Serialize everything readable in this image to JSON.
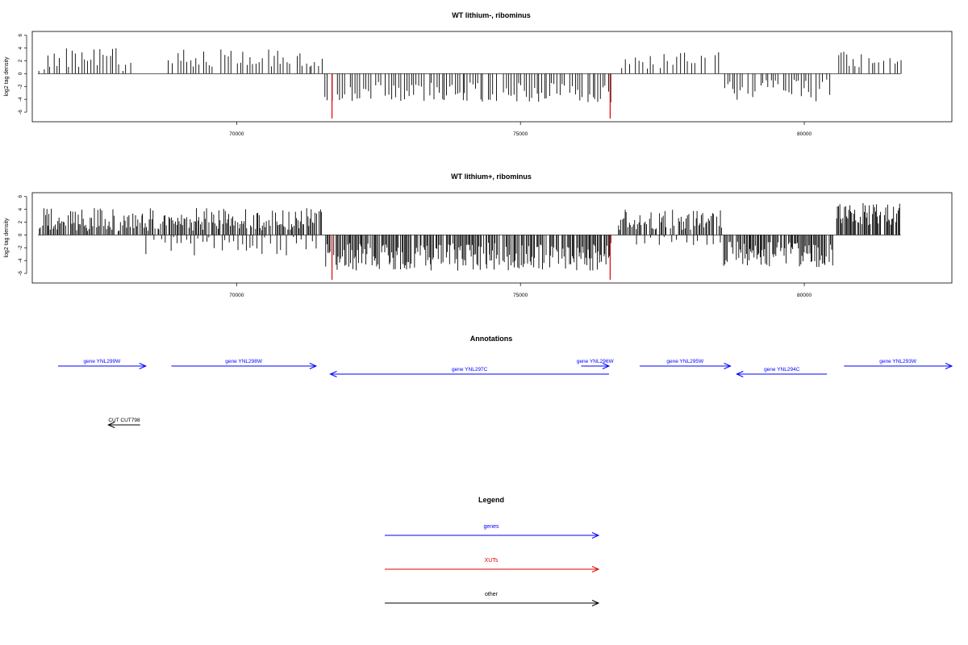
{
  "chart_data": [
    {
      "type": "bar",
      "title": "WT lithium-, ribominus",
      "xlabel": "",
      "ylabel": "log2 tag density",
      "xlim": [
        66400,
        82600
      ],
      "ylim": [
        -7.5,
        6.6
      ],
      "xticks": [
        70000,
        75000,
        80000
      ],
      "yticks": [
        6,
        4,
        2,
        0,
        -2,
        -4,
        -6
      ],
      "baseline": [
        66500,
        81700
      ],
      "segments": [
        {
          "from": 66500,
          "to": 68200,
          "sign": 1,
          "mean": 2.2,
          "amp": 2.0,
          "step": 55
        },
        {
          "from": 68800,
          "to": 71500,
          "sign": 1,
          "mean": 2.4,
          "amp": 1.4,
          "step": 55
        },
        {
          "from": 71550,
          "to": 76600,
          "sign": -1,
          "mean": 2.9,
          "amp": 1.6,
          "step": 45
        },
        {
          "from": 76800,
          "to": 78500,
          "sign": 1,
          "mean": 2.1,
          "amp": 1.4,
          "step": 60
        },
        {
          "from": 78600,
          "to": 80450,
          "sign": -1,
          "mean": 2.6,
          "amp": 1.7,
          "step": 45
        },
        {
          "from": 80600,
          "to": 81700,
          "sign": 1,
          "mean": 2.3,
          "amp": 1.3,
          "step": 50
        }
      ],
      "highlights": [
        {
          "x": 71680,
          "value": -7.0,
          "color": "#e00000"
        },
        {
          "x": 76580,
          "value": -7.0,
          "color": "#e00000"
        }
      ]
    },
    {
      "type": "bar",
      "title": "WT lithium+, ribominus",
      "xlabel": "",
      "ylabel": "log2 tag density",
      "xlim": [
        66400,
        82600
      ],
      "ylim": [
        -7.5,
        6.6
      ],
      "xticks": [
        70000,
        75000,
        80000
      ],
      "yticks": [
        6,
        4,
        2,
        0,
        -2,
        -4,
        -6
      ],
      "baseline": [
        66500,
        81700
      ],
      "segments": [
        {
          "from": 66500,
          "to": 71500,
          "sign": 1,
          "mean": 2.4,
          "amp": 1.8,
          "step": 22
        },
        {
          "from": 68200,
          "to": 71500,
          "sign": -1,
          "mean": 1.6,
          "amp": 1.6,
          "step": 70
        },
        {
          "from": 71550,
          "to": 76600,
          "sign": -1,
          "mean": 3.4,
          "amp": 2.2,
          "step": 20
        },
        {
          "from": 76700,
          "to": 78550,
          "sign": 1,
          "mean": 2.4,
          "amp": 1.6,
          "step": 24
        },
        {
          "from": 76700,
          "to": 78550,
          "sign": -1,
          "mean": 0.8,
          "amp": 0.8,
          "step": 120
        },
        {
          "from": 78560,
          "to": 80500,
          "sign": -1,
          "mean": 3.0,
          "amp": 2.0,
          "step": 20
        },
        {
          "from": 80550,
          "to": 81700,
          "sign": 1,
          "mean": 3.2,
          "amp": 1.8,
          "step": 18
        }
      ],
      "highlights": [
        {
          "x": 71680,
          "value": -7.0,
          "color": "#e00000"
        },
        {
          "x": 76580,
          "value": -7.0,
          "color": "#e00000"
        }
      ]
    }
  ],
  "annotations": {
    "title": "Annotations",
    "genes": [
      {
        "label": "gene YNL299W",
        "from": 66450,
        "to": 68400,
        "dir": "+",
        "row": 0
      },
      {
        "label": "gene YNL298W",
        "from": 68850,
        "to": 71400,
        "dir": "+",
        "row": 0
      },
      {
        "label": "gene YNL297C",
        "from": 71650,
        "to": 76560,
        "dir": "-",
        "row": 1
      },
      {
        "label": "gene YNL296W",
        "from": 76070,
        "to": 76560,
        "dir": "+",
        "row": 0
      },
      {
        "label": "gene YNL295W",
        "from": 77100,
        "to": 78700,
        "dir": "+",
        "row": 0
      },
      {
        "label": "gene YNL294C",
        "from": 78810,
        "to": 80400,
        "dir": "-",
        "row": 1
      },
      {
        "label": "gene YNL293W",
        "from": 80700,
        "to": 82600,
        "dir": "+",
        "row": 0
      }
    ],
    "other": [
      {
        "label": "CUT CUT798",
        "from": 67740,
        "to": 68300,
        "dir": "-"
      }
    ]
  },
  "legend": {
    "title": "Legend",
    "items": [
      {
        "label": "genes",
        "color": "#0000ff"
      },
      {
        "label": "XUTs",
        "color": "#e00000"
      },
      {
        "label": "other",
        "color": "#000000"
      }
    ]
  }
}
